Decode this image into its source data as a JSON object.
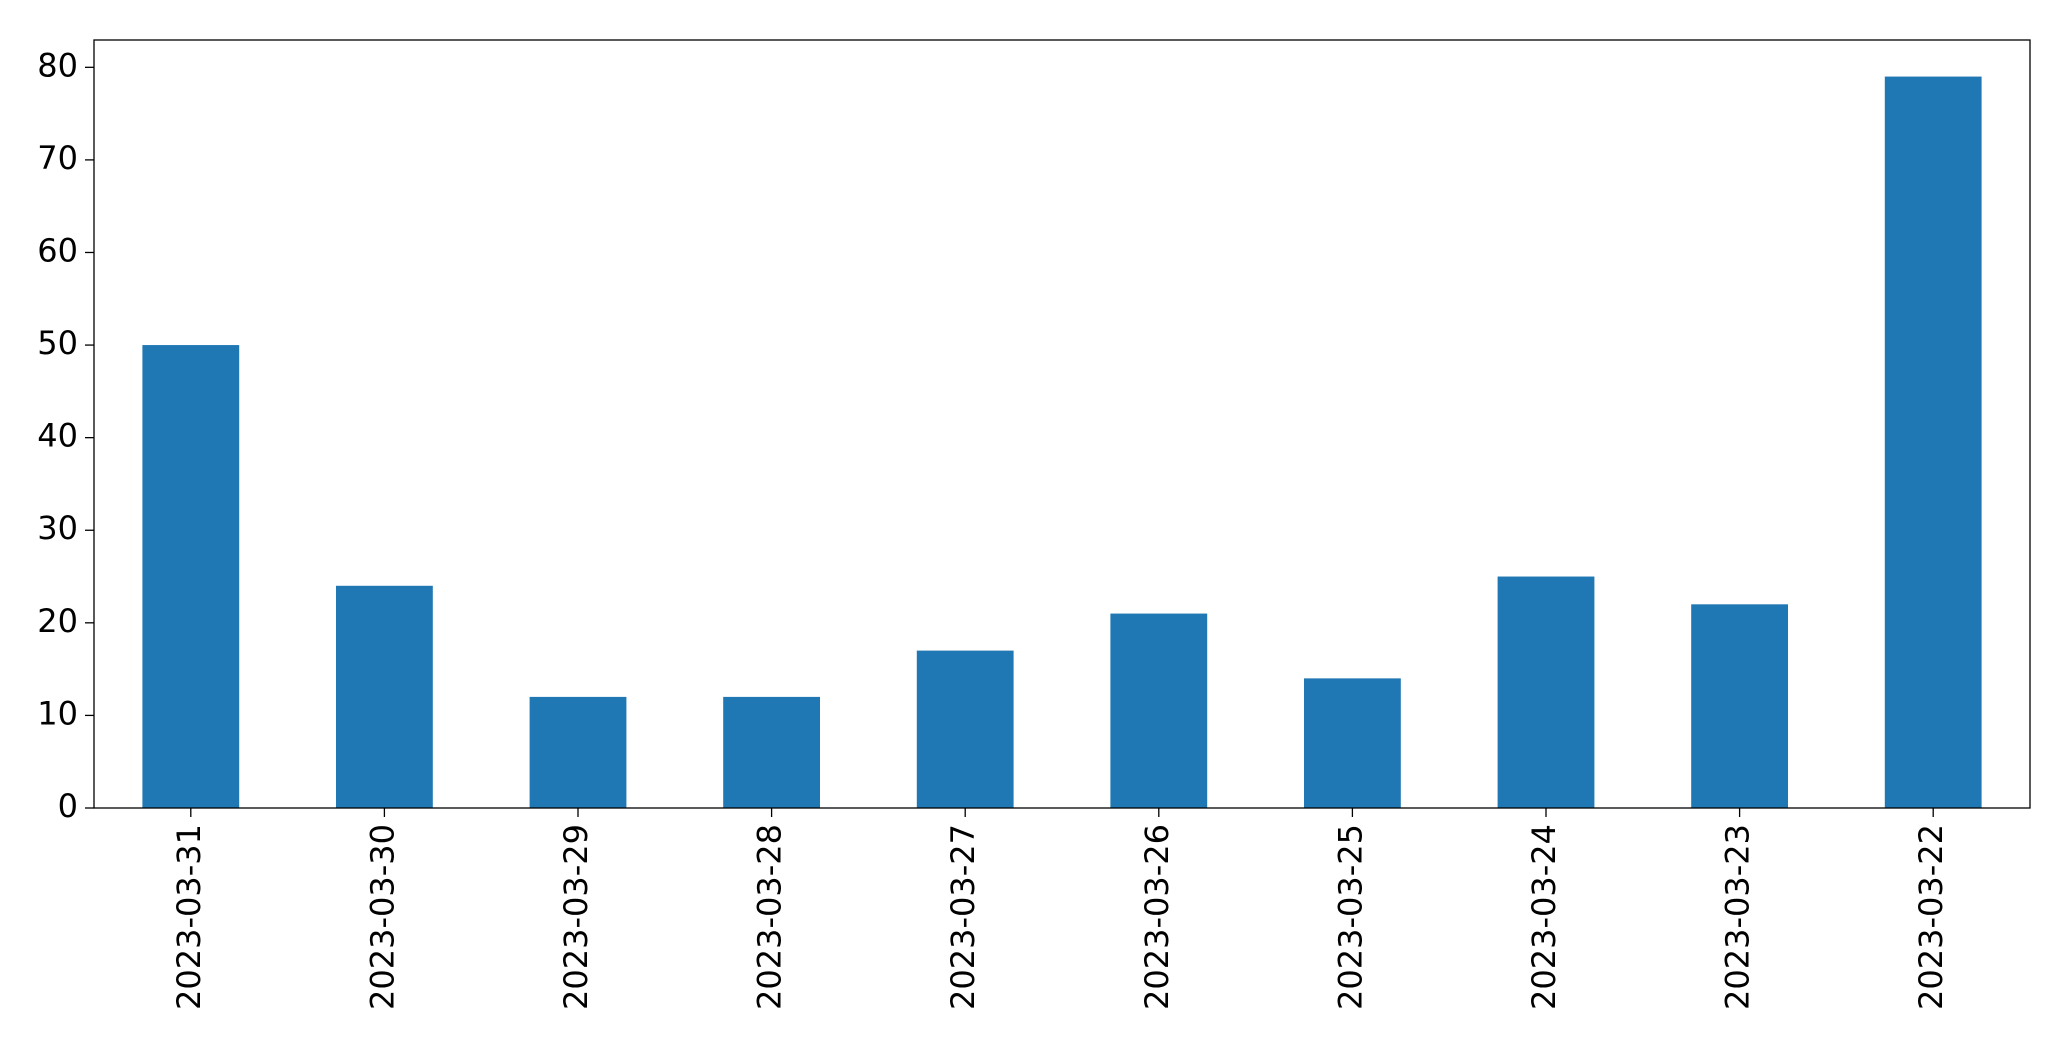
{
  "chart_data": {
    "type": "bar",
    "categories": [
      "2023-03-31",
      "2023-03-30",
      "2023-03-29",
      "2023-03-28",
      "2023-03-27",
      "2023-03-26",
      "2023-03-25",
      "2023-03-24",
      "2023-03-23",
      "2023-03-22"
    ],
    "values": [
      50,
      24,
      12,
      12,
      17,
      21,
      14,
      25,
      22,
      79
    ],
    "color": "#1f77b4",
    "ylim": [
      0,
      82.95
    ],
    "yticks": [
      0,
      10,
      20,
      30,
      40,
      50,
      60,
      70,
      80
    ],
    "grid": false
  }
}
